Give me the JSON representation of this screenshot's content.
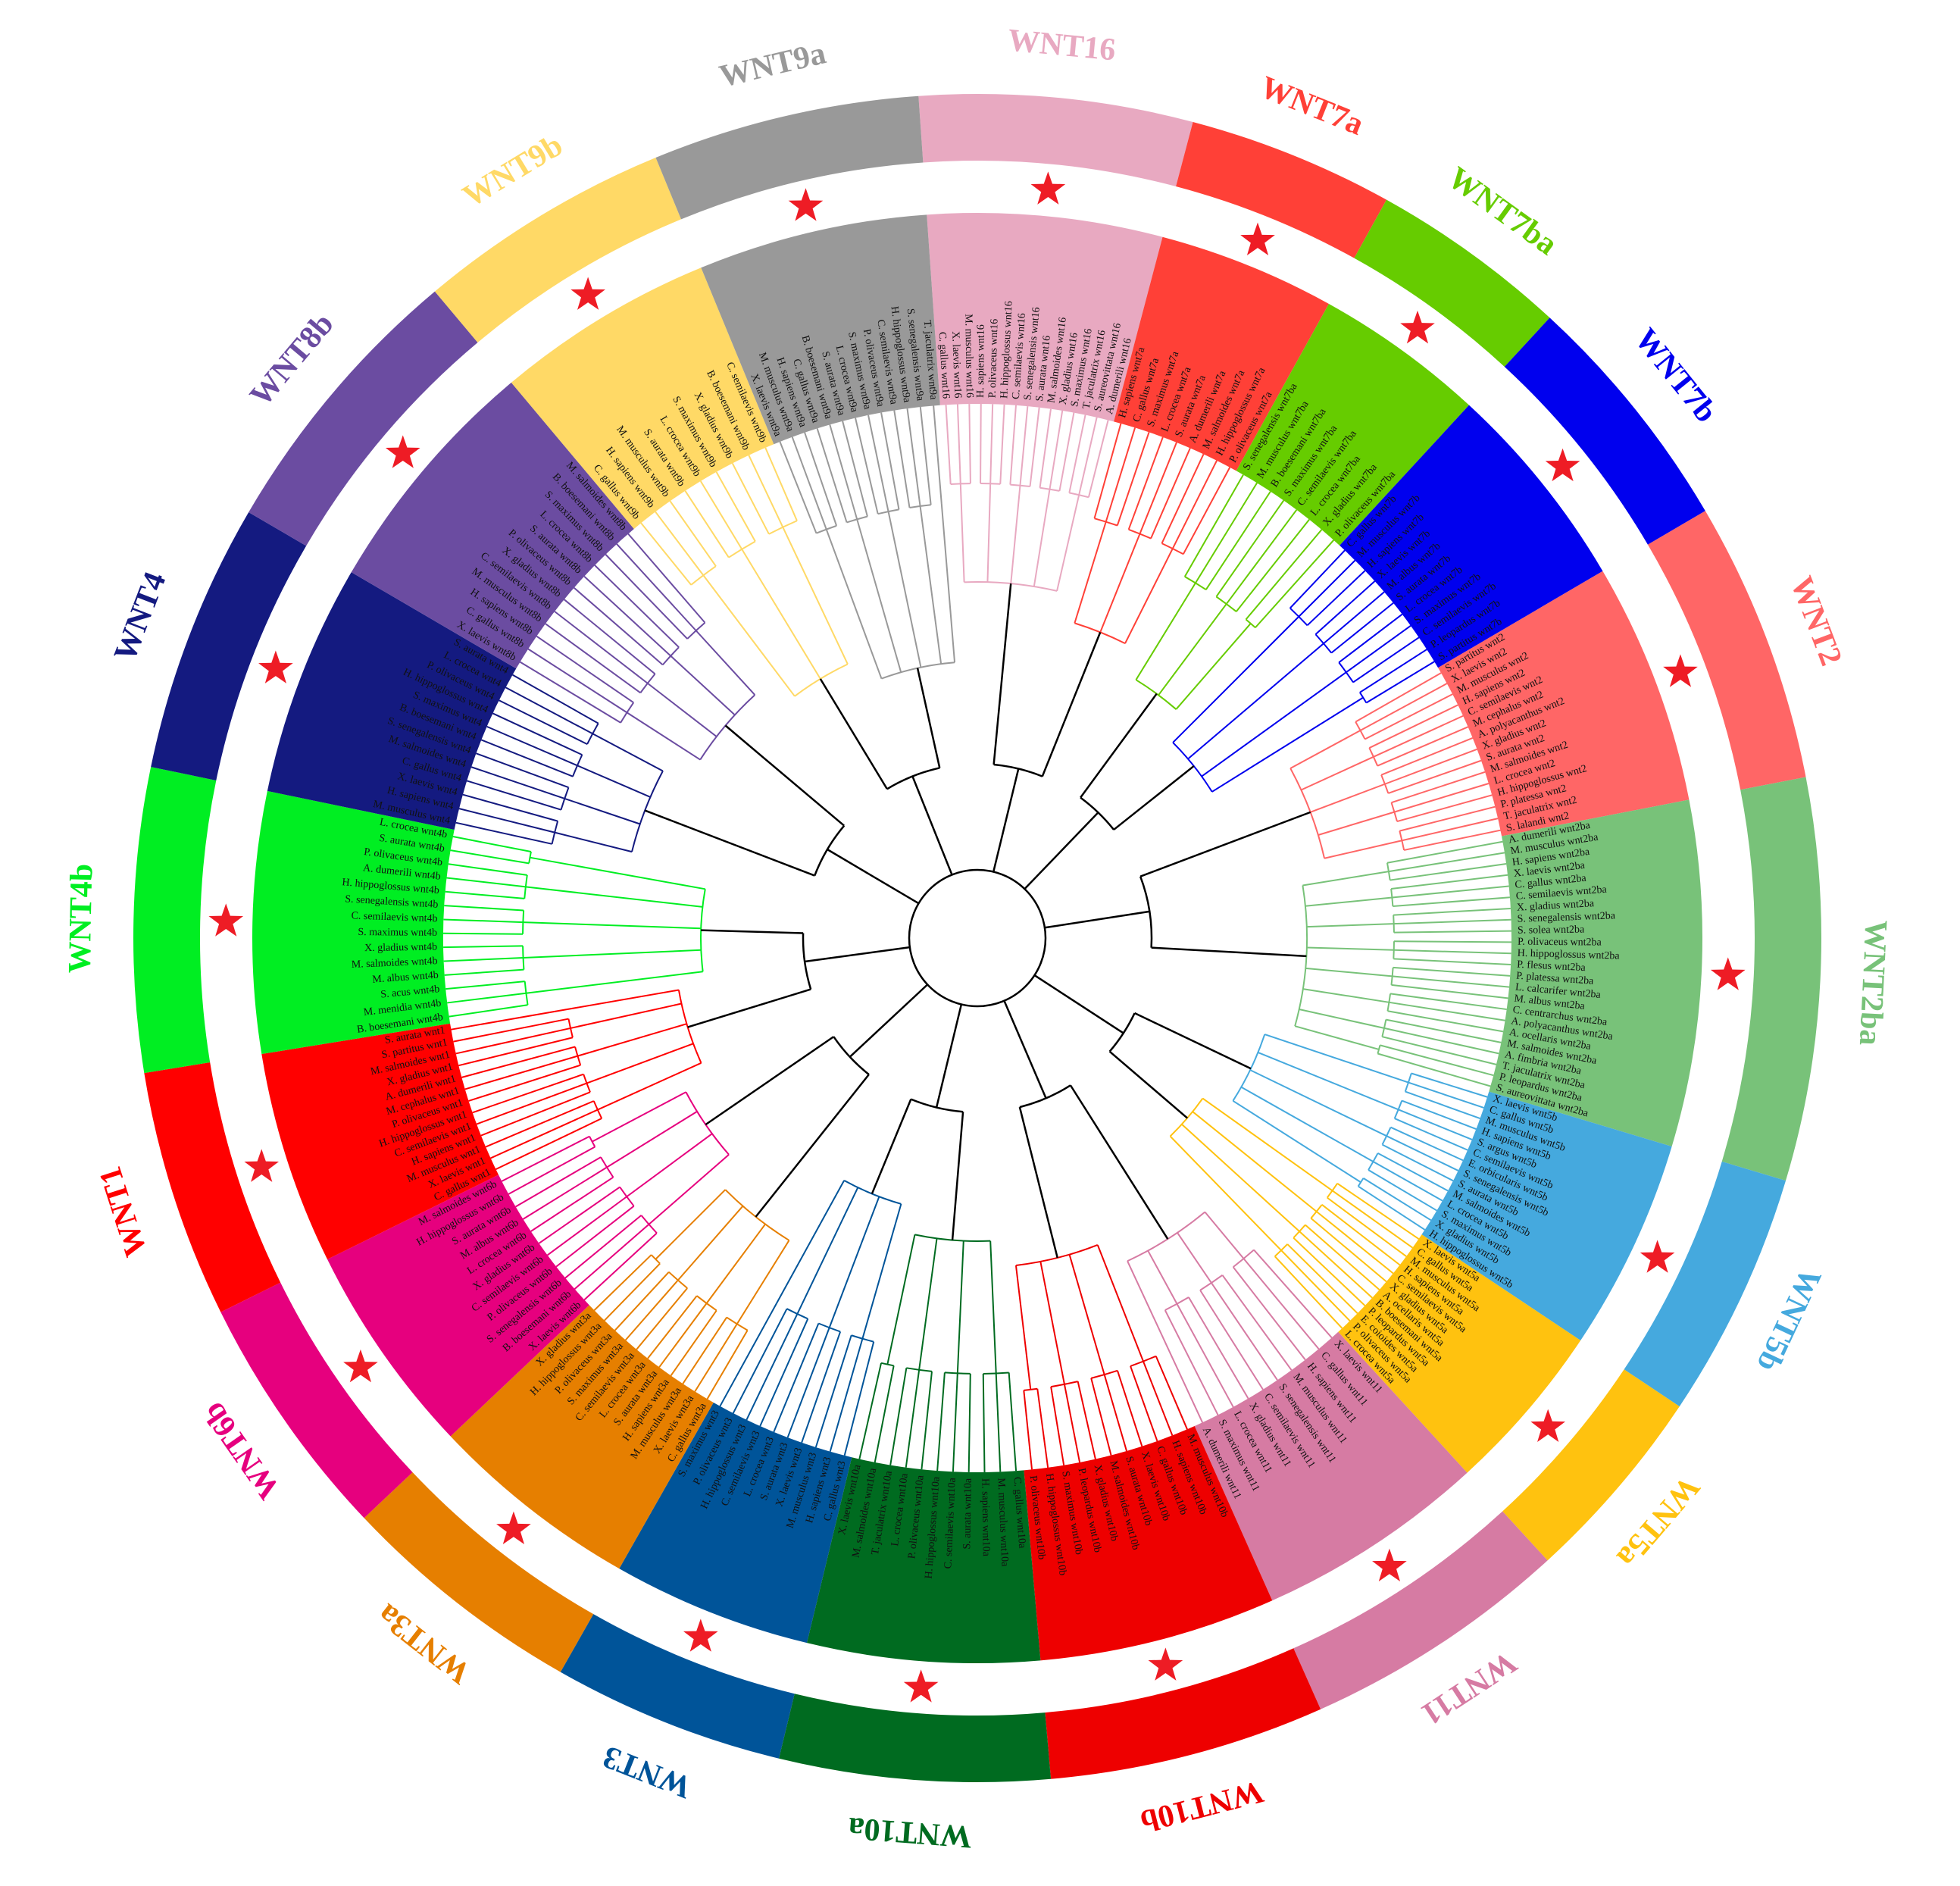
{
  "clades": [
    {
      "label": "WNT16",
      "color": "#e8a9c1",
      "leaves": [
        "C. gallus wnt16",
        "X. laevis wnt16",
        "M. musculus wnt16",
        "H. sapiens wnt16",
        "P. olivaceus wnt16",
        "H. hippoglossus wnt16",
        "C. semilaevis wnt16",
        "S. senegalensis wnt16",
        "S. aurata wnt16",
        "M. salmoides wnt16",
        "X. gladius wnt16",
        "S. maximus wnt16",
        "T. jaculatrix wnt16",
        "S. aureovittata wnt16",
        "A. dumerili wnt16"
      ]
    },
    {
      "label": "WNT7a",
      "color": "#ff4037",
      "leaves": [
        "H. sapiens wnt7a",
        "C. gallus wnt7a",
        "S. maximus wnt7a",
        "L. crocea wnt7a",
        "S. aurata wnt7a",
        "A. dumerili wnt7a",
        "M. salmoides wnt7a",
        "H. hippoglossus wnt7a",
        "P. olivaceus wnt7a"
      ]
    },
    {
      "label": "WNT7ba",
      "color": "#66cc00",
      "leaves": [
        "S. senegalensis wnt7ba",
        "M. musculus wnt7ba",
        "B. boesemani wnt7ba",
        "S. maximus wnt7ba",
        "C. semilaevis wnt7ba",
        "L. crocea wnt7ba",
        "X. gladius wnt7ba",
        "P. olivaceus wnt7ba"
      ]
    },
    {
      "label": "WNT7b",
      "color": "#0000ee",
      "leaves": [
        "C. gallus wnt7b",
        "M. musculus wnt7b",
        "H. sapiens wnt7b",
        "X. laevis wnt7b",
        "M. albus wnt7b",
        "S. aurata wnt7b",
        "L. crocea wnt7b",
        "S. maximus wnt7b",
        "C. semilaevis wnt7b",
        "P. leopardus wnt7b",
        "S. partitus wnt7b"
      ]
    },
    {
      "label": "WNT2",
      "color": "#ff6666",
      "leaves": [
        "S. partitus wnt2",
        "X. laevis wnt2",
        "M. musculus wnt2",
        "H. sapiens wnt2",
        "C. semilaevis wnt2",
        "M. cephalus wnt2",
        "A. polyacanthus wnt2",
        "X. gladius wnt2",
        "S. aurata wnt2",
        "M. salmoides wnt2",
        "L. crocea wnt2",
        "H. hippoglossus wnt2",
        "P. platessa wnt2",
        "T. jaculatrix wnt2",
        "S. lalandi wnt2"
      ]
    },
    {
      "label": "WNT2ba",
      "color": "#78c279",
      "leaves": [
        "A. dumerili wnt2ba",
        "M. musculus wnt2ba",
        "H. sapiens wnt2ba",
        "X. laevis wnt2ba",
        "C. gallus wnt2ba",
        "C. semilaevis wnt2ba",
        "X. gladius wnt2ba",
        "S. senegalensis wnt2ba",
        "S. solea wnt2ba",
        "P. olivaceus wnt2ba",
        "H. hippoglossus wnt2ba",
        "P. flesus wnt2ba",
        "P. platessa wnt2ba",
        "L. calcarifer wnt2ba",
        "M. albus wnt2ba",
        "C. centrarchus wnt2ba",
        "A. polyacanthus wnt2ba",
        "A. ocellaris wnt2ba",
        "M. salmoides wnt2ba",
        "A. fimbria wnt2ba",
        "T. jaculatrix wnt2ba",
        "P. leopardus wnt2ba",
        "S. aureovittata wnt2ba"
      ]
    },
    {
      "label": "WNT5b",
      "color": "#45a9de",
      "leaves": [
        "X. laevis wnt5b",
        "C. gallus wnt5b",
        "M. musculus wnt5b",
        "H. sapiens wnt5b",
        "S. argus wnt5b",
        "C. semilaevis wnt5b",
        "E. orbicularis wnt5b",
        "S. senegalensis wnt5b",
        "S. aurata wnt5b",
        "M. salmoides wnt5b",
        "L. crocea wnt5b",
        "S. maximus wnt5b",
        "X. gladius wnt5b",
        "H. hippoglossus wnt5b"
      ]
    },
    {
      "label": "WNT5a",
      "color": "#ffc20f",
      "leaves": [
        "X. laevis wnt5a",
        "C. gallus wnt5a",
        "M. musculus wnt5a",
        "H. sapiens wnt5a",
        "C. semilaevis wnt5a",
        "X. gladius wnt5a",
        "A. ocellaris wnt5a",
        "B. boesemani wnt5a",
        "P. leopardus wnt5a",
        "E. coioides wnt5a",
        "P. olivaceus wnt5a",
        "L. crocea wnt5a"
      ]
    },
    {
      "label": "WNT11",
      "color": "#d67ba3",
      "leaves": [
        "X. laevis wnt11",
        "C. gallus wnt11",
        "H. sapiens wnt11",
        "M. musculus wnt11",
        "S. senegalensis wnt11",
        "C. semilaevis wnt11",
        "X. gladius wnt11",
        "L. crocea wnt11",
        "S. maximus wnt11",
        "A. dumerili wnt11"
      ]
    },
    {
      "label": "WNT10b",
      "color": "#ee0000",
      "leaves": [
        "M. musculus wnt10b",
        "H. sapiens wnt10b",
        "C. gallus wnt10b",
        "X. laevis wnt10b",
        "S. aurata wnt10b",
        "M. salmoides wnt10b",
        "X. gladius wnt10b",
        "P. leopardus wnt10b",
        "S. maximus wnt10b",
        "H. hippoglossus wnt10b",
        "P. olivaceus wnt10b"
      ]
    },
    {
      "label": "WNT10a",
      "color": "#006b20",
      "leaves": [
        "C. gallus wnt10a",
        "M. musculus wnt10a",
        "H. sapiens wnt10a",
        "S. aurata wnt10a",
        "C. semilaevis wnt10a",
        "H. hippoglossus wnt10a",
        "P. olivaceus wnt10a",
        "L. crocea wnt10a",
        "T. jaculatrix wnt10a",
        "M. salmoides wnt10a",
        "X. laevis wnt10a"
      ]
    },
    {
      "label": "WNT3",
      "color": "#005499",
      "leaves": [
        "C. gallus wnt3",
        "H. sapiens wnt3",
        "M. musculus wnt3",
        "X. laevis wnt3",
        "S. aurata wnt3",
        "L. crocea wnt3",
        "C. semilaevis wnt3",
        "H. hippoglossus wnt3",
        "P. olivaceus wnt3",
        "S. maximus wnt3"
      ]
    },
    {
      "label": "WNT3a",
      "color": "#e67f00",
      "leaves": [
        "C. gallus wnt3a",
        "X. laevis wnt3a",
        "M. musculus wnt3a",
        "H. sapiens wnt3a",
        "S. aurata wnt3a",
        "L. crocea wnt3a",
        "C. semilaevis wnt3a",
        "S. maximus wnt3a",
        "P. olivaceus wnt3a",
        "H. hippoglossus wnt3a",
        "X. gladius wnt3a"
      ]
    },
    {
      "label": "WNT6b",
      "color": "#e6007e",
      "leaves": [
        "X. laevis wnt6b",
        "B. boesemani wnt6b",
        "S. senegalensis wnt6b",
        "P. olivaceus wnt6b",
        "C. semilaevis wnt6b",
        "X. gladius wnt6b",
        "L. crocea wnt6b",
        "M. albus wnt6b",
        "S. aurata wnt6b",
        "H. hippoglossus wnt6b",
        "M. salmoides wnt6b"
      ]
    },
    {
      "label": "WNT1",
      "color": "#ff0000",
      "leaves": [
        "C. gallus wnt1",
        "X. laevis wnt1",
        "M. musculus wnt1",
        "H. sapiens wnt1",
        "C. semilaevis wnt1",
        "H. hippoglossus wnt1",
        "P. olivaceus wnt1",
        "M. cephalus wnt1",
        "A. dumerili wnt1",
        "X. gladius wnt1",
        "M. salmoides wnt1",
        "S. partitus wnt1",
        "S. aurata wnt1"
      ]
    },
    {
      "label": "WNT4b",
      "color": "#00ee22",
      "leaves": [
        "B. boesemani wnt4b",
        "M. menidia wnt4b",
        "S. acus wnt4b",
        "M. albus wnt4b",
        "M. salmoides wnt4b",
        "X. gladius wnt4b",
        "S. maximus wnt4b",
        "C. semilaevis wnt4b",
        "S. senegalensis wnt4b",
        "H. hippoglossus wnt4b",
        "A. dumerili wnt4b",
        "P. olivaceus wnt4b",
        "S. aurata wnt4b",
        "L. crocea wnt4b"
      ]
    },
    {
      "label": "WNT4",
      "color": "#141a80",
      "leaves": [
        "M. musculus wnt4",
        "H. sapiens wnt4",
        "X. laevis wnt4",
        "C. gallus wnt4",
        "M. salmoides wnt4",
        "S. senegalensis wnt4",
        "B. boesemani wnt4",
        "S. maximus wnt4",
        "H. hippoglossus wnt4",
        "P. olivaceus wnt4",
        "L. crocea wnt4",
        "S. aurata wnt4"
      ]
    },
    {
      "label": "WNT8b",
      "color": "#6b4ca1",
      "leaves": [
        "X. laevis wnt8b",
        "C. gallus wnt8b",
        "H. sapiens wnt8b",
        "M. musculus wnt8b",
        "C. semilaevis wnt8b",
        "X. gladius wnt8b",
        "P. olivaceus wnt8b",
        "S. aurata wnt8b",
        "L. crocea wnt8b",
        "S. maximus wnt8b",
        "B. boesemani wnt8b",
        "M. salmoides wnt8b"
      ]
    },
    {
      "label": "WNT9b",
      "color": "#ffd966",
      "leaves": [
        "C. gallus wnt9b",
        "H. sapiens wnt9b",
        "M. musculus wnt9b",
        "S. aurata wnt9b",
        "L. crocea wnt9b",
        "S. maximus wnt9b",
        "X. gladius wnt9b",
        "B. boesemani wnt9b",
        "C. semilaevis wnt9b"
      ]
    },
    {
      "label": "WNT9a",
      "color": "#999999",
      "leaves": [
        "X. laevis wnt9a",
        "M. musculus wnt9a",
        "H. sapiens wnt9a",
        "C. gallus wnt9a",
        "B. boesemani wnt9a",
        "S. aurata wnt9a",
        "L. crocea wnt9a",
        "S. maximus wnt9a",
        "P. olivaceus wnt9a",
        "C. semilaevis wnt9a",
        "H. hippoglossus wnt9a",
        "S. senegalensis wnt9a",
        "T. jaculatrix wnt9a"
      ]
    }
  ]
}
